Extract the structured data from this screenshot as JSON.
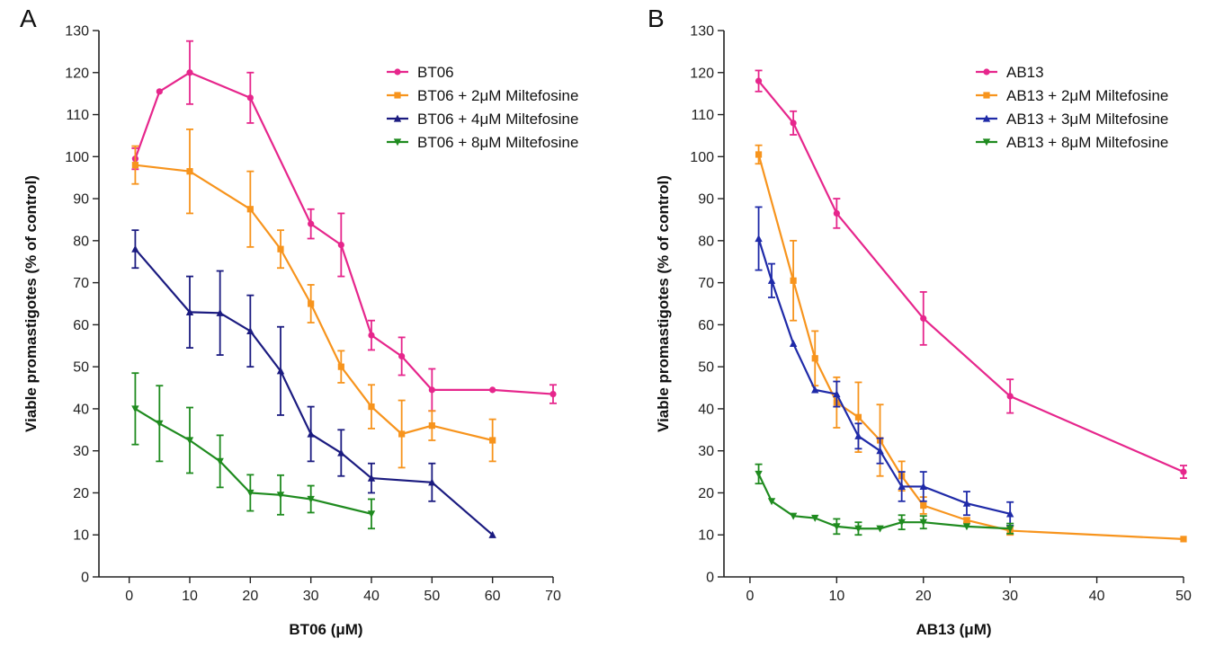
{
  "chart_data": [
    {
      "type": "line",
      "panel_label": "A",
      "xlabel": "BT06 (μM)",
      "ylabel": "Viable promastigotes (% of control)",
      "xlim": [
        -5,
        70
      ],
      "ylim": [
        0,
        130
      ],
      "xticks": [
        0,
        10,
        20,
        30,
        40,
        50,
        60,
        70
      ],
      "yticks": [
        0,
        10,
        20,
        30,
        40,
        50,
        60,
        70,
        80,
        90,
        100,
        110,
        120,
        130
      ],
      "legend_position": "top-right",
      "grid": false,
      "series": [
        {
          "name": "BT06",
          "color": "#e6268c",
          "marker": "circle",
          "x": [
            1,
            5,
            10,
            20,
            30,
            35,
            40,
            45,
            50,
            60,
            70
          ],
          "y": [
            99.5,
            115.5,
            120,
            114,
            84,
            79,
            57.5,
            52.5,
            44.5,
            44.5,
            43.5
          ],
          "err": [
            2.5,
            0,
            7.5,
            6,
            3.5,
            7.5,
            3.5,
            4.5,
            5,
            0,
            2.2
          ]
        },
        {
          "name": "BT06 + 2μM Miltefosine",
          "color": "#f7941d",
          "marker": "square",
          "x": [
            1,
            10,
            20,
            25,
            30,
            35,
            40,
            45,
            50,
            60
          ],
          "y": [
            98,
            96.5,
            87.5,
            78,
            65,
            50,
            40.5,
            34,
            36,
            32.5
          ],
          "err": [
            4.5,
            10,
            9,
            4.5,
            4.5,
            3.8,
            5.2,
            8,
            3.5,
            5
          ]
        },
        {
          "name": "BT06 + 4μM Miltefosine",
          "color": "#1b1b80",
          "marker": "triangle-up",
          "x": [
            1,
            10,
            15,
            20,
            25,
            30,
            35,
            40,
            50,
            60
          ],
          "y": [
            78,
            63,
            62.8,
            58.5,
            49,
            34,
            29.5,
            23.5,
            22.5,
            10
          ],
          "err": [
            4.5,
            8.5,
            10,
            8.5,
            10.5,
            6.5,
            5.5,
            3.5,
            4.5,
            0
          ]
        },
        {
          "name": "BT06 + 8μM Miltefosine",
          "color": "#1f8b1f",
          "marker": "triangle-down",
          "x": [
            1,
            5,
            10,
            15,
            20,
            25,
            30,
            40
          ],
          "y": [
            40,
            36.5,
            32.5,
            27.5,
            20,
            19.5,
            18.5,
            15
          ],
          "err": [
            8.5,
            9,
            7.8,
            6.2,
            4.3,
            4.7,
            3.2,
            3.5
          ]
        }
      ]
    },
    {
      "type": "line",
      "panel_label": "B",
      "xlabel": "AB13 (μM)",
      "ylabel": "Viable promastigotes (% of control)",
      "xlim": [
        -3,
        50
      ],
      "ylim": [
        0,
        130
      ],
      "xticks": [
        0,
        10,
        20,
        30,
        40,
        50
      ],
      "yticks": [
        0,
        10,
        20,
        30,
        40,
        50,
        60,
        70,
        80,
        90,
        100,
        110,
        120,
        130
      ],
      "legend_position": "top-right",
      "grid": false,
      "series": [
        {
          "name": "AB13",
          "color": "#e6268c",
          "marker": "circle",
          "x": [
            1,
            5,
            10,
            20,
            30,
            50
          ],
          "y": [
            118,
            108,
            86.5,
            61.5,
            43,
            25
          ],
          "err": [
            2.5,
            2.8,
            3.5,
            6.3,
            4,
            1.5
          ]
        },
        {
          "name": "AB13 + 2μM Miltefosine",
          "color": "#f7941d",
          "marker": "square",
          "x": [
            1,
            5,
            7.5,
            10,
            12.5,
            15,
            17.5,
            20,
            25,
            30,
            50
          ],
          "y": [
            100.5,
            70.5,
            52,
            41.5,
            38,
            32.5,
            24,
            17,
            13.5,
            11,
            9
          ],
          "err": [
            2.2,
            9.5,
            6.5,
            6,
            8.3,
            8.5,
            3.5,
            2,
            0.5,
            1,
            0
          ]
        },
        {
          "name": "AB13 + 3μM Miltefosine",
          "color": "#1f2aa8",
          "marker": "triangle-up",
          "x": [
            1,
            2.5,
            5,
            7.5,
            10,
            12.5,
            15,
            17.5,
            20,
            25,
            30
          ],
          "y": [
            80.5,
            70.5,
            55.5,
            44.5,
            43.5,
            33.5,
            30,
            21.5,
            21.5,
            17.5,
            15
          ],
          "err": [
            7.5,
            4,
            0,
            0,
            3,
            3,
            3,
            3.5,
            3.5,
            2.8,
            2.8
          ]
        },
        {
          "name": "AB13 + 8μM Miltefosine",
          "color": "#1f8b1f",
          "marker": "triangle-down",
          "x": [
            1,
            2.5,
            5,
            7.5,
            10,
            12.5,
            15,
            17.5,
            20,
            25,
            30
          ],
          "y": [
            24.5,
            18,
            14.5,
            14,
            12,
            11.5,
            11.5,
            13,
            13,
            12,
            11.5
          ],
          "err": [
            2.3,
            0,
            0,
            0,
            1.8,
            1.5,
            0,
            1.7,
            1.5,
            0,
            1.2
          ]
        }
      ]
    }
  ]
}
